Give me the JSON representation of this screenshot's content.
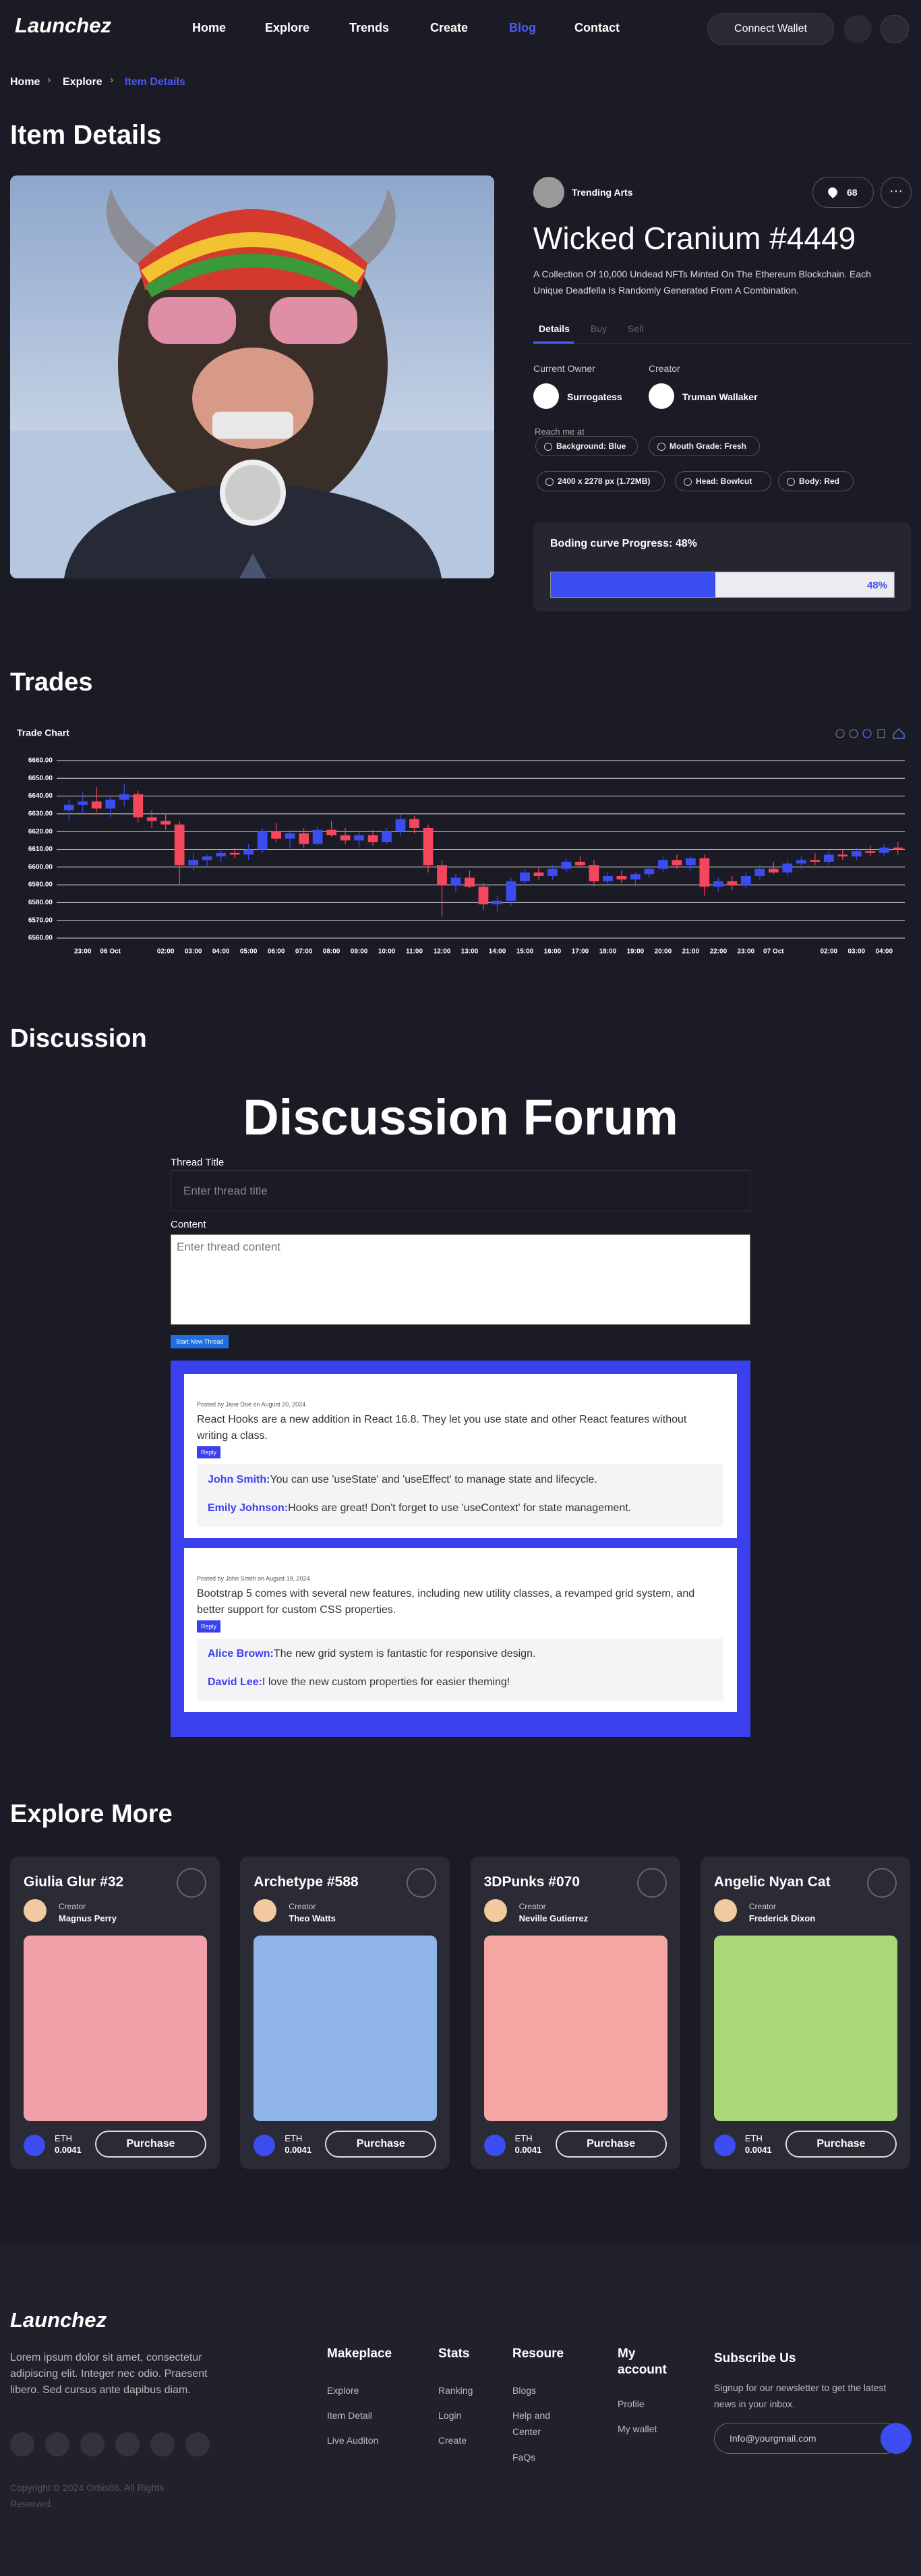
{
  "nav": {
    "logo": "Launchez",
    "links": [
      "Home",
      "Explore",
      "Trends",
      "Create",
      "Blog",
      "Contact"
    ],
    "connect": "Connect Wallet"
  },
  "breadcrumb": [
    "Home",
    "Explore",
    "Item Details"
  ],
  "item": {
    "heading": "Item Details",
    "collection": "Trending Arts",
    "likes": "68",
    "title": "Wicked Cranium #4449",
    "description": "A Collection Of 10,000 Undead NFTs Minted On The Ethereum Blockchain. Each Unique Deadfella Is Randomly Generated From A Combination.",
    "tabs": [
      "Details",
      "Buy",
      "Sell"
    ],
    "owner_label": "Current Owner",
    "owner": "Surrogatess",
    "creator_label": "Creator",
    "creator": "Truman Wallaker",
    "reach": "Reach me at",
    "tags": [
      "Background: Blue",
      "Mouth Grade: Fresh",
      "2400 x 2278 px (1.72MB)",
      "Head: Bowlcut",
      "Body: Red"
    ],
    "bonding": {
      "label": "Boding curve Progress: 48%",
      "progress": 48,
      "progress_label": "48%"
    }
  },
  "trades_heading": "Trades",
  "chart_data": {
    "type": "candlestick",
    "title": "Trade Chart",
    "categories": [
      null,
      "23:00",
      null,
      "06 Oct",
      null,
      null,
      null,
      "02:00",
      null,
      "03:00",
      null,
      "04:00",
      null,
      "05:00",
      null,
      "06:00",
      null,
      "07:00",
      null,
      "08:00",
      null,
      "09:00",
      null,
      "10:00",
      null,
      "11:00",
      null,
      "12:00",
      null,
      "13:00",
      null,
      "14:00",
      null,
      "15:00",
      null,
      "16:00",
      null,
      "17:00",
      null,
      "18:00",
      null,
      "19:00",
      null,
      "20:00",
      null,
      "21:00",
      null,
      "22:00",
      null,
      "23:00",
      null,
      "07 Oct",
      null,
      null,
      null,
      "02:00",
      null,
      "03:00",
      null,
      "04:00",
      null
    ],
    "open": [
      6632,
      6635,
      6637,
      6633,
      6638,
      6641,
      6628,
      6626,
      6624,
      6601,
      6604,
      6606,
      6608,
      6607,
      6610,
      6620,
      6616,
      6619,
      6613,
      6621,
      6618,
      6615,
      6618,
      6614,
      6620,
      6627,
      6622,
      6601,
      6590,
      6594,
      6589,
      6579,
      6581,
      6592,
      6597,
      6595,
      6599,
      6603,
      6601,
      6592,
      6595,
      6593,
      6596,
      6599,
      6604,
      6601,
      6605,
      6589,
      6592,
      6590,
      6595,
      6599,
      6597,
      6602,
      6604,
      6603,
      6607,
      6606,
      6609,
      6608,
      6611
    ],
    "high": [
      6638,
      6642,
      6645,
      6640,
      6647,
      6643,
      6632,
      6630,
      6626,
      6608,
      6607,
      6610,
      6611,
      6613,
      6622,
      6625,
      6621,
      6622,
      6623,
      6626,
      6622,
      6620,
      6621,
      6622,
      6630,
      6629,
      6624,
      6604,
      6596,
      6598,
      6591,
      6584,
      6594,
      6599,
      6600,
      6601,
      6605,
      6606,
      6604,
      6597,
      6598,
      6597,
      6601,
      6606,
      6607,
      6606,
      6607,
      6594,
      6595,
      6597,
      6601,
      6603,
      6604,
      6606,
      6608,
      6609,
      6610,
      6611,
      6612,
      6613,
      6614
    ],
    "low": [
      6626,
      6630,
      6631,
      6628,
      6634,
      6625,
      6622,
      6621,
      6590,
      6598,
      6600,
      6603,
      6605,
      6604,
      6608,
      6614,
      6610,
      6611,
      6612,
      6617,
      6613,
      6611,
      6612,
      6613,
      6618,
      6619,
      6597,
      6572,
      6586,
      6588,
      6576,
      6575,
      6578,
      6590,
      6593,
      6593,
      6597,
      6600,
      6589,
      6590,
      6591,
      6589,
      6594,
      6597,
      6599,
      6598,
      6584,
      6586,
      6587,
      6588,
      6593,
      6596,
      6595,
      6599,
      6601,
      6601,
      6604,
      6604,
      6606,
      6606,
      6607
    ],
    "close": [
      6635,
      6637,
      6633,
      6638,
      6641,
      6628,
      6626,
      6624,
      6601,
      6604,
      6606,
      6608,
      6607,
      6610,
      6620,
      6616,
      6619,
      6613,
      6621,
      6618,
      6615,
      6618,
      6614,
      6620,
      6627,
      6622,
      6601,
      6590,
      6594,
      6589,
      6579,
      6581,
      6592,
      6597,
      6595,
      6599,
      6603,
      6601,
      6592,
      6595,
      6593,
      6596,
      6599,
      6604,
      6601,
      6605,
      6589,
      6592,
      6590,
      6595,
      6599,
      6597,
      6602,
      6604,
      6603,
      6607,
      6606,
      6609,
      6608,
      6611,
      6610
    ],
    "up_color": "#3b4cf0",
    "down_color": "#f4475e",
    "ylim": [
      6560,
      6660
    ],
    "yticks": [
      {
        "value": 6660,
        "label": "6660.00"
      },
      {
        "value": 6650,
        "label": "6650.00"
      },
      {
        "value": 6640,
        "label": "6640.00"
      },
      {
        "value": 6630,
        "label": "6630.00"
      },
      {
        "value": 6620,
        "label": "6620.00"
      },
      {
        "value": 6610,
        "label": "6610.00"
      },
      {
        "value": 6600,
        "label": "6600.00"
      },
      {
        "value": 6590,
        "label": "6590.00"
      },
      {
        "value": 6580,
        "label": "6580.00"
      },
      {
        "value": 6570,
        "label": "6570.00"
      },
      {
        "value": 6560,
        "label": "6560.00"
      }
    ],
    "grid": true
  },
  "discussion": {
    "heading": "Discussion",
    "forum_title": "Discussion Forum",
    "thread_title_label": "Thread Title",
    "thread_title_placeholder": "Enter thread title",
    "content_label": "Content",
    "content_placeholder": "Enter thread content",
    "button": "Start New Thread",
    "posts": [
      {
        "meta": "Posted by Jane Doe on August 20, 2024",
        "text": "React Hooks are a new addition in React 16.8. They let you use state and other React features without writing a class.",
        "reply": "Reply",
        "replies": [
          {
            "author": "John Smith:",
            "text": "You can use 'useState' and 'useEffect' to manage state and lifecycle."
          },
          {
            "author": "Emily Johnson:",
            "text": "Hooks are great! Don't forget to use 'useContext' for state management."
          }
        ]
      },
      {
        "meta": "Posted by John Smith on August 19, 2024",
        "text": "Bootstrap 5 comes with several new features, including new utility classes, a revamped grid system, and better support for custom CSS properties.",
        "reply": "Reply",
        "replies": [
          {
            "author": "Alice Brown:",
            "text": "The new grid system is fantastic for responsive design."
          },
          {
            "author": "David Lee:",
            "text": "I love the new custom properties for easier theming!"
          }
        ]
      }
    ]
  },
  "explore": {
    "heading": "Explore More",
    "cards": [
      {
        "title": "Giulia Glur #32",
        "creator_label": "Creator",
        "creator": "Magnus Perry",
        "currency": "ETH",
        "price": "0.0041",
        "button": "Purchase"
      },
      {
        "title": "Archetype #588",
        "creator_label": "Creator",
        "creator": "Theo Watts",
        "currency": "ETH",
        "price": "0.0041",
        "button": "Purchase"
      },
      {
        "title": "3DPunks #070",
        "creator_label": "Creator",
        "creator": "Neville Gutierrez",
        "currency": "ETH",
        "price": "0.0041",
        "button": "Purchase"
      },
      {
        "title": "Angelic Nyan Cat",
        "creator_label": "Creator",
        "creator": "Frederick Dixon",
        "currency": "ETH",
        "price": "0.0041",
        "button": "Purchase"
      }
    ]
  },
  "footer": {
    "logo": "Launchez",
    "about": "Lorem ipsum dolor sit amet, consectetur adipiscing elit. Integer nec odio. Praesent libero. Sed cursus ante dapibus diam.",
    "columns": [
      {
        "title": "Makeplace",
        "links": [
          "Explore",
          "Item Detail",
          "Live Auditon"
        ]
      },
      {
        "title": "Stats",
        "links": [
          "Ranking",
          "Login",
          "Create"
        ]
      },
      {
        "title": "Resoure",
        "links": [
          "Blogs",
          "Help and Center",
          "FaQs"
        ]
      },
      {
        "title": "My account",
        "links": [
          "Profile",
          "My wallet"
        ]
      }
    ],
    "subscribe_title": "Subscribe Us",
    "subscribe_text": "Signup for our newsletter to get the latest news in your inbox.",
    "subscribe_placeholder": "Info@yourgmail.com",
    "copyright": "Copyright © 2024 Orbis86. All Rights Reserved."
  }
}
